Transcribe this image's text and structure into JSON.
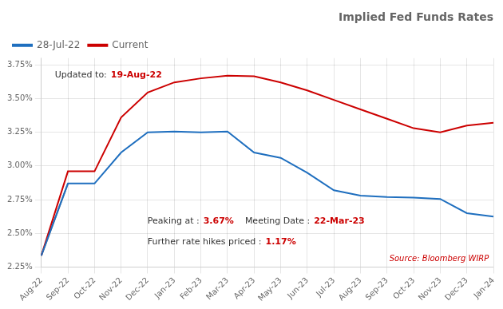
{
  "chart_data": {
    "type": "line",
    "title": "Implied Fed Funds Rates",
    "categories": [
      "Aug-22",
      "Sep-22",
      "Oct-22",
      "Nov-22",
      "Dec-22",
      "Jan-23",
      "Feb-23",
      "Mar-23",
      "Apr-23",
      "May-23",
      "Jun-23",
      "Jul-23",
      "Aug-23",
      "Sep-23",
      "Oct-23",
      "Nov-23",
      "Dec-23",
      "Jan-24"
    ],
    "series": [
      {
        "color": "#888888",
        "values": [
          2.335,
          2.87,
          null,
          null,
          null,
          null,
          null,
          null,
          null,
          null,
          null,
          null,
          null,
          null,
          null,
          null,
          null,
          null
        ]
      },
      {
        "name": "Current",
        "color": "#CC0000",
        "values": [
          2.335,
          2.96,
          2.96,
          3.36,
          3.545,
          3.62,
          3.65,
          3.67,
          3.665,
          3.62,
          3.56,
          3.49,
          3.42,
          3.35,
          3.28,
          3.25,
          3.3,
          3.32
        ]
      },
      {
        "name": "28-Jul-22",
        "color": "#1F6FBF",
        "values": [
          2.335,
          2.87,
          2.87,
          3.1,
          3.25,
          3.255,
          3.25,
          3.255,
          3.1,
          3.06,
          2.95,
          2.82,
          2.78,
          2.77,
          2.765,
          2.755,
          2.65,
          2.625
        ]
      }
    ],
    "ylim": [
      2.25,
      3.8
    ],
    "yticks": [
      {
        "value": 2.25,
        "label": "2.25%"
      },
      {
        "value": 2.5,
        "label": "2.50%"
      },
      {
        "value": 2.75,
        "label": "2.75%"
      },
      {
        "value": 3.0,
        "label": "3.00%"
      },
      {
        "value": 3.25,
        "label": "3.25%"
      },
      {
        "value": 3.5,
        "label": "3.50%"
      },
      {
        "value": 3.75,
        "label": "3.75%"
      }
    ],
    "grid": true,
    "legend": "upper left",
    "annotations": [
      {
        "text": "Updated to:",
        "color": "#333333"
      },
      {
        "text": "19-Aug-22",
        "color": "#CC0000"
      },
      {
        "text": "Peaking at :",
        "color": "#333333"
      },
      {
        "text": "3.67%",
        "color": "#CC0000"
      },
      {
        "text": "Meeting Date :",
        "color": "#333333"
      },
      {
        "text": "22-Mar-23",
        "color": "#CC0000"
      },
      {
        "text": "Further rate hikes priced :",
        "color": "#333333"
      },
      {
        "text": "1.17%",
        "color": "#CC0000"
      },
      {
        "text": "Source: Bloomberg WIRP",
        "color": "#CC0000"
      }
    ]
  }
}
